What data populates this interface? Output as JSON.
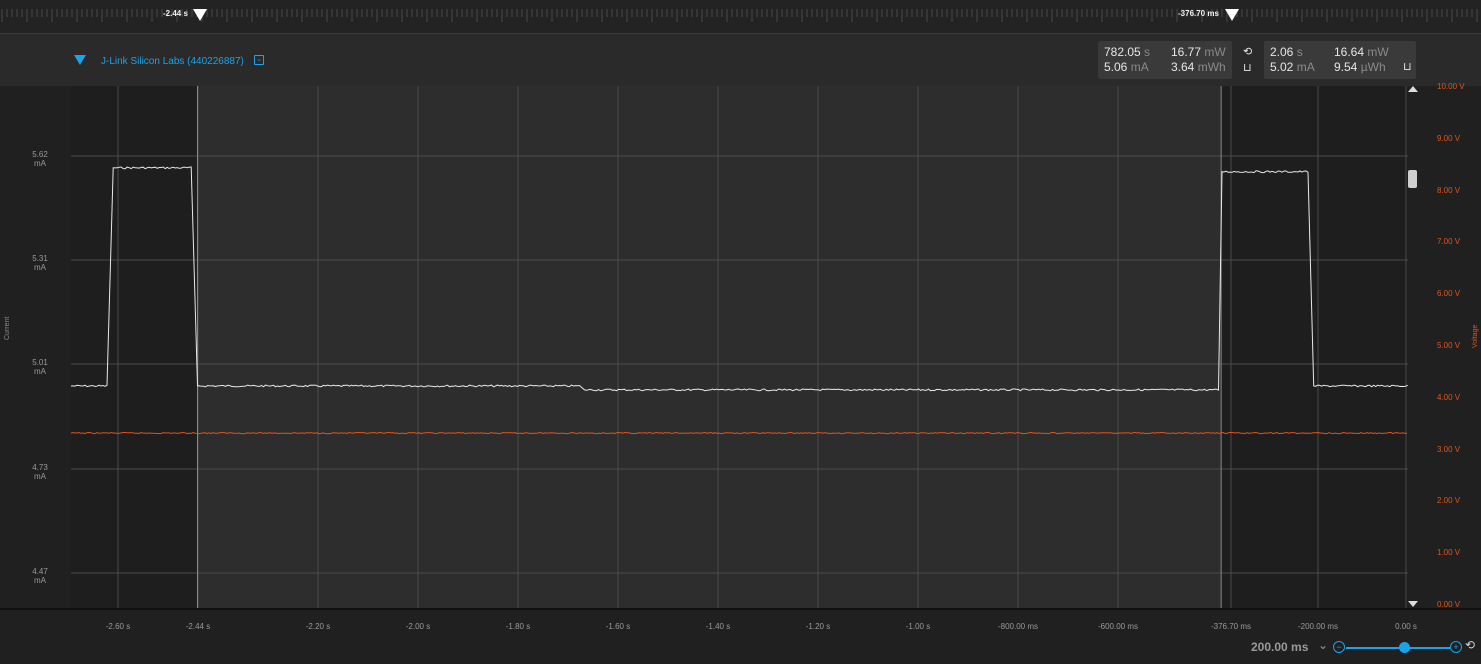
{
  "ruler": {
    "markers": [
      {
        "label": "-2.44 s"
      },
      {
        "label": "-376.70 ms"
      }
    ]
  },
  "device": {
    "name": "J-Link Silicon Labs (440226887)",
    "accent": "#1aa3e8"
  },
  "stats_left": {
    "time": "782.05",
    "time_unit": "s",
    "power": "16.77",
    "power_unit": "mW",
    "current": "5.06",
    "current_unit": "mA",
    "energy": "3.64",
    "energy_unit": "mWh"
  },
  "stats_right": {
    "time": "2.06",
    "time_unit": "s",
    "power": "16.64",
    "power_unit": "mW",
    "current": "5.02",
    "current_unit": "mA",
    "energy": "9.54",
    "energy_unit": "µWh"
  },
  "icons": {
    "reset": "reset-icon",
    "export": "export-icon",
    "zoom_minus": "zoom-minus-icon",
    "zoom_plus": "zoom-plus-icon",
    "zoom_reset": "zoom-reset-icon"
  },
  "chart_data": {
    "type": "line",
    "xlabel": "",
    "ylabel": "Current",
    "y2label": "Voltage",
    "x_ticks": [
      "-2.60 s",
      "-2.44 s",
      "-2.20 s",
      "-2.00 s",
      "-1.80 s",
      "-1.60 s",
      "-1.40 s",
      "-1.20 s",
      "-1.00 s",
      "-800.00 ms",
      "-600.00 ms",
      "-376.70 ms",
      "-200.00 ms",
      "0.00 s"
    ],
    "y_ticks": [
      {
        "value": "5.62",
        "unit": "mA"
      },
      {
        "value": "5.31",
        "unit": "mA"
      },
      {
        "value": "5.01",
        "unit": "mA"
      },
      {
        "value": "4.73",
        "unit": "mA"
      },
      {
        "value": "4.47",
        "unit": "mA"
      }
    ],
    "y2_ticks": [
      "10.00 V",
      "9.00 V",
      "8.00 V",
      "7.00 V",
      "6.00 V",
      "5.00 V",
      "4.00 V",
      "3.00 V",
      "2.00 V",
      "1.00 V",
      "0.00 V"
    ],
    "xlim_s": [
      -2.695,
      0.0
    ],
    "ylim_mA": [
      4.44,
      5.78
    ],
    "y2lim_V": [
      0,
      10
    ],
    "selection_s": [
      -2.44,
      -0.3767
    ],
    "series": [
      {
        "unit": "mA",
        "color": "#e8e8e8",
        "x": [
          -2.695,
          -2.62,
          -2.61,
          -2.45,
          -2.44,
          -1.67,
          -1.66,
          -0.38,
          -0.375,
          -0.2,
          -0.19,
          0.0
        ],
        "y": [
          5.01,
          5.01,
          5.57,
          5.57,
          5.01,
          5.01,
          5.0,
          5.0,
          5.56,
          5.56,
          5.01,
          5.01
        ]
      },
      {
        "unit": "V",
        "color": "#e0541a",
        "x": [
          -2.695,
          0.0
        ],
        "y": [
          3.3,
          3.3
        ]
      }
    ]
  },
  "zoom": {
    "value": "200.00 ms",
    "chevron": "⌄",
    "minus": "−",
    "plus": "+",
    "reset": "⟲",
    "level": 0.56
  }
}
